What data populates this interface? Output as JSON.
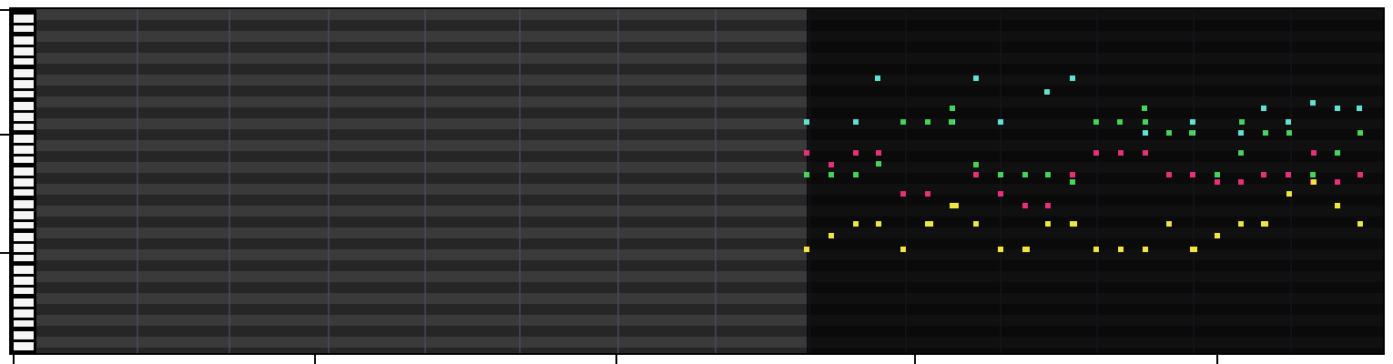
{
  "colors": {
    "note_cyan": "#5ee3d2",
    "note_green": "#45d35a",
    "note_pink": "#e8307a",
    "note_yellow": "#f0e640",
    "grid_light": "#3a3a3a",
    "grid_dark": "#262626",
    "playhead_boundary": "#000000"
  },
  "icons": {
    "keyboard": "piano-keys"
  },
  "notes": {
    "cyan_count": 18,
    "green_count": 29,
    "pink_count": 24,
    "yellow_count": 30
  }
}
